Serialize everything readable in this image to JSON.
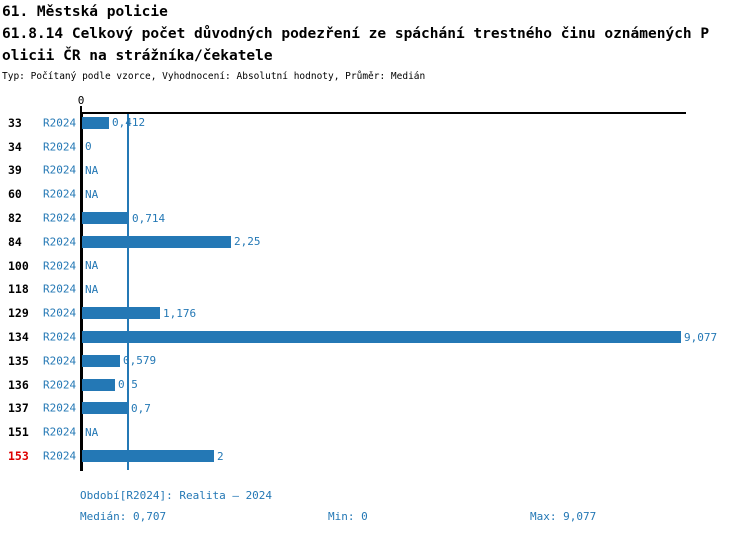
{
  "header": {
    "title_line1": "61. Městská policie",
    "title_line2": "61.8.14 Celkový počet důvodných podezření ze spáchání trestného činu oznámených P",
    "title_line3": "olicii ČR na strážníka/čekatele",
    "subtitle": "Typ: Počítaný podle vzorce, Vyhodnocení: Absolutní hodnoty, Průměr: Medián"
  },
  "chart_data": {
    "type": "bar",
    "orientation": "horizontal",
    "title": "61.8.14 Celkový počet důvodných podezření ze spáchání trestného činu oznámených Policii ČR na strážníka/čekatele",
    "xlabel": "",
    "ylabel": "",
    "axis": {
      "min": 0,
      "max_extent": 9.17,
      "tick_label": "0",
      "median_reference_line": 0.707,
      "grid": false
    },
    "series_name": "R2024",
    "categories": [
      "33",
      "34",
      "39",
      "60",
      "82",
      "84",
      "100",
      "118",
      "129",
      "134",
      "135",
      "136",
      "137",
      "151",
      "153"
    ],
    "rows": [
      {
        "id": "33",
        "period": "R2024",
        "value": 0.412,
        "value_label": "0,412",
        "highlight": false
      },
      {
        "id": "34",
        "period": "R2024",
        "value": 0,
        "value_label": "0",
        "highlight": false
      },
      {
        "id": "39",
        "period": "R2024",
        "value": null,
        "value_label": "NA",
        "highlight": false
      },
      {
        "id": "60",
        "period": "R2024",
        "value": null,
        "value_label": "NA",
        "highlight": false
      },
      {
        "id": "82",
        "period": "R2024",
        "value": 0.714,
        "value_label": "0,714",
        "highlight": false
      },
      {
        "id": "84",
        "period": "R2024",
        "value": 2.25,
        "value_label": "2,25",
        "highlight": false
      },
      {
        "id": "100",
        "period": "R2024",
        "value": null,
        "value_label": "NA",
        "highlight": false
      },
      {
        "id": "118",
        "period": "R2024",
        "value": null,
        "value_label": "NA",
        "highlight": false
      },
      {
        "id": "129",
        "period": "R2024",
        "value": 1.176,
        "value_label": "1,176",
        "highlight": false
      },
      {
        "id": "134",
        "period": "R2024",
        "value": 9.077,
        "value_label": "9,077",
        "highlight": false
      },
      {
        "id": "135",
        "period": "R2024",
        "value": 0.579,
        "value_label": "0,579",
        "highlight": false
      },
      {
        "id": "136",
        "period": "R2024",
        "value": 0.5,
        "value_label": "0,5",
        "highlight": false
      },
      {
        "id": "137",
        "period": "R2024",
        "value": 0.7,
        "value_label": "0,7",
        "highlight": false
      },
      {
        "id": "151",
        "period": "R2024",
        "value": null,
        "value_label": "NA",
        "highlight": false
      },
      {
        "id": "153",
        "period": "R2024",
        "value": 2,
        "value_label": "2",
        "highlight": true
      }
    ],
    "stats": {
      "median": 0.707,
      "min": 0,
      "max": 9.077
    },
    "legend_position": "none"
  },
  "footer": {
    "period_label": "Období[R2024]: Realita – 2024",
    "median_label": "Medián: 0,707",
    "min_label": "Min: 0",
    "max_label": "Max: 9,077"
  },
  "colors": {
    "bar_blue": "#2478b5",
    "text_blue": "#2478b5",
    "highlight_red": "#dd0000",
    "axis_black": "#000000",
    "background": "#ffffff"
  }
}
